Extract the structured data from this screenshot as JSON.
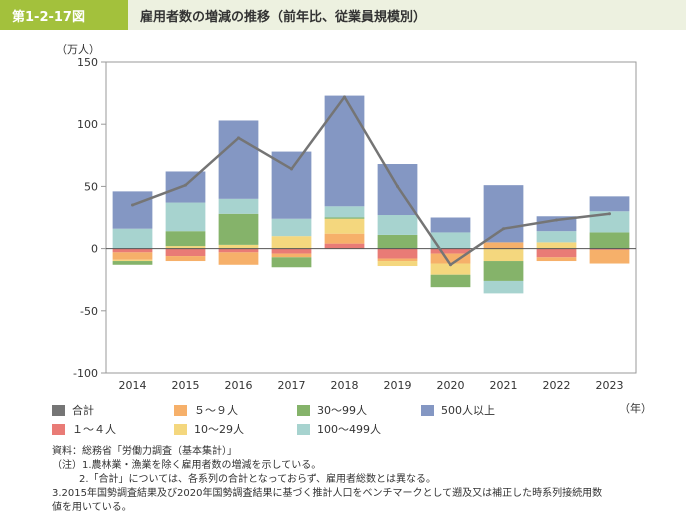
{
  "header": {
    "figure_no": "第1-2-17図",
    "title": "雇用者数の増減の推移（前年比、従業員規模別）"
  },
  "chart_data": {
    "type": "bar",
    "stacked": true,
    "unit_label": "（万人）",
    "year_label": "（年）",
    "categories": [
      "2014",
      "2015",
      "2016",
      "2017",
      "2018",
      "2019",
      "2020",
      "2021",
      "2022",
      "2023"
    ],
    "ylim": [
      -100,
      150
    ],
    "yticks": [
      150,
      100,
      50,
      0,
      -50,
      -100
    ],
    "grid": false,
    "series": [
      {
        "name": "１～４人",
        "color": "#e97b76",
        "values": [
          -3,
          -6,
          -3,
          -4,
          4,
          -8,
          -4,
          0,
          -7,
          -1
        ]
      },
      {
        "name": "５～９人",
        "color": "#f6b06a",
        "values": [
          -6,
          -4,
          -10,
          -3,
          8,
          -2,
          -8,
          5,
          -3,
          -11
        ]
      },
      {
        "name": "10～29人",
        "color": "#f4d77e",
        "values": [
          -1,
          2,
          3,
          10,
          12,
          -4,
          -9,
          -10,
          5,
          0
        ]
      },
      {
        "name": "30～99人",
        "color": "#85b36a",
        "values": [
          -3,
          12,
          25,
          -8,
          1,
          11,
          -10,
          -16,
          0,
          13
        ]
      },
      {
        "name": "100～499人",
        "color": "#a7d3cf",
        "values": [
          16,
          23,
          12,
          14,
          9,
          16,
          13,
          -10,
          9,
          17
        ]
      },
      {
        "name": "500人以上",
        "color": "#8497c3",
        "values": [
          30,
          25,
          63,
          54,
          89,
          41,
          12,
          46,
          12,
          12
        ]
      }
    ],
    "total": {
      "name": "合計",
      "color": "#757575",
      "values": [
        35,
        51,
        89,
        64,
        122,
        50,
        -13,
        16,
        23,
        28
      ]
    }
  },
  "legend": {
    "total": "合計",
    "s5_9": "５～９人",
    "s30_99": "30～99人",
    "s500": "500人以上",
    "s1_4": "１～４人",
    "s10_29": "10～29人",
    "s100_499": "100～499人"
  },
  "notes": {
    "line1": "資料：総務省「労働力調査（基本集計）」",
    "line2": "（注）1.農林業・漁業を除く雇用者数の増減を示している。",
    "line3": "2.「合計」については、各系列の合計となっておらず、雇用者総数とは異なる。",
    "line4": "3.2015年国勢調査結果及び2020年国勢調査結果に基づく推計人口をベンチマークとして遡及又は補正した時系列接続用数",
    "line5": "値を用いている。"
  }
}
